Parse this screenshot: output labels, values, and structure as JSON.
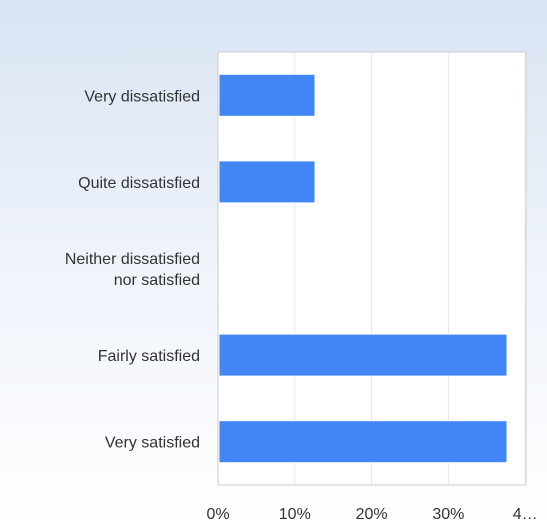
{
  "chart_data": {
    "type": "bar",
    "orientation": "horizontal",
    "categories": [
      [
        "Very dissatisfied"
      ],
      [
        "Quite dissatisfied"
      ],
      [
        "Neither dissatisfied",
        "nor satisfied"
      ],
      [
        "Fairly satisfied"
      ],
      [
        "Very satisfied"
      ]
    ],
    "values": [
      12.5,
      12.5,
      0,
      37.5,
      37.5
    ],
    "x_ticks": [
      "0%",
      "10%",
      "20%",
      "30%",
      "4…"
    ],
    "xlim": [
      0,
      37.5
    ],
    "grid": true,
    "legend": "none",
    "title": "",
    "xlabel": "",
    "ylabel": "",
    "colors": {
      "bar": "#4285f4",
      "grid": "#e6e6e6",
      "axis": "#cccccc",
      "text": "#333333"
    }
  }
}
